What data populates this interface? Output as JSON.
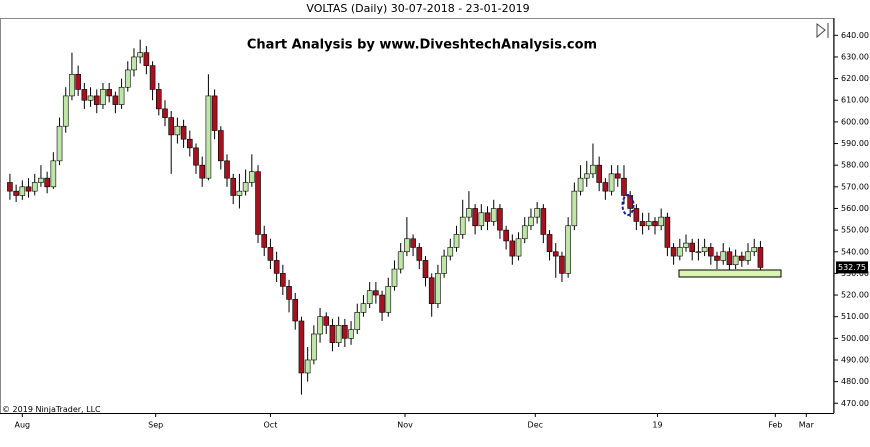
{
  "chart_data": {
    "type": "candlestick",
    "title": "VOLTAS (Daily)  30-07-2018 - 23-01-2019",
    "annotation": "Chart Analysis by www.DiveshtechAnalysis.com",
    "copyright": "© 2019 NinjaTrader, LLC",
    "up_color": "#bfe6a8",
    "down_color": "#a3121f",
    "ylim": [
      465.5,
      648
    ],
    "yticks": [
      {
        "value": 640,
        "label": "640.00"
      },
      {
        "value": 630,
        "label": "630.00"
      },
      {
        "value": 620,
        "label": "620.00"
      },
      {
        "value": 610,
        "label": "610.00"
      },
      {
        "value": 600,
        "label": "600.00"
      },
      {
        "value": 590,
        "label": "590.00"
      },
      {
        "value": 580,
        "label": "580.00"
      },
      {
        "value": 570,
        "label": "570.00"
      },
      {
        "value": 560,
        "label": "560.00"
      },
      {
        "value": 550,
        "label": "550.00"
      },
      {
        "value": 540,
        "label": "540.00"
      },
      {
        "value": 530,
        "label": "530.00"
      },
      {
        "value": 520,
        "label": "520.00"
      },
      {
        "value": 510,
        "label": "510.00"
      },
      {
        "value": 500,
        "label": "500.00"
      },
      {
        "value": 490,
        "label": "490.00"
      },
      {
        "value": 480,
        "label": "480.00"
      },
      {
        "value": 470,
        "label": "470.00"
      }
    ],
    "xlim": [
      -1.6,
      132.7
    ],
    "xticks": [
      {
        "value": 2,
        "label": "Aug"
      },
      {
        "value": 23.5,
        "label": "Sep"
      },
      {
        "value": 42,
        "label": "Oct"
      },
      {
        "value": 63.7,
        "label": "Nov"
      },
      {
        "value": 84.7,
        "label": "Dec"
      },
      {
        "value": 104.4,
        "label": "19"
      },
      {
        "value": 123.4,
        "label": "Feb"
      },
      {
        "value": 128.4,
        "label": "Mar"
      }
    ],
    "open": [
      572,
      568,
      566,
      570,
      568,
      572,
      574,
      570,
      582,
      598,
      612,
      622,
      615,
      610,
      612,
      608,
      615,
      612,
      608,
      616,
      624,
      630,
      632,
      626,
      615,
      606,
      602,
      594,
      598,
      592,
      588,
      580,
      574,
      612,
      596,
      582,
      574,
      566,
      568,
      572,
      577,
      548,
      542,
      536,
      530,
      524,
      518,
      508,
      484,
      490,
      502,
      510,
      506,
      498,
      506,
      500,
      504,
      512,
      516,
      522,
      520,
      512,
      524,
      532,
      540,
      546,
      542,
      536,
      528,
      516,
      530,
      538,
      542,
      548,
      556,
      560,
      552,
      558,
      554,
      560,
      550,
      545,
      538,
      546,
      552,
      556,
      560,
      548,
      540,
      538,
      530,
      552,
      568,
      574,
      576,
      580,
      572,
      568,
      576,
      574,
      566,
      560,
      554,
      552,
      554,
      552,
      556,
      542,
      538,
      542,
      544,
      540,
      540,
      542,
      538,
      536,
      540,
      534,
      538,
      536,
      540,
      542
    ],
    "high": [
      576,
      571,
      573,
      574,
      576,
      580,
      577,
      586,
      602,
      616,
      632,
      626,
      618,
      616,
      615,
      618,
      618,
      614,
      620,
      628,
      634,
      638,
      635,
      628,
      618,
      610,
      605,
      602,
      601,
      596,
      590,
      584,
      622,
      615,
      598,
      585,
      576,
      576,
      578,
      585,
      580,
      552,
      546,
      540,
      534,
      527,
      521,
      510,
      496,
      506,
      514,
      512,
      509,
      510,
      509,
      508,
      516,
      520,
      526,
      526,
      522,
      528,
      536,
      544,
      556,
      548,
      544,
      538,
      530,
      534,
      541,
      546,
      552,
      564,
      568,
      562,
      562,
      561,
      564,
      562,
      552,
      548,
      549,
      556,
      560,
      563,
      562,
      550,
      544,
      540,
      556,
      572,
      580,
      582,
      590,
      584,
      574,
      580,
      580,
      580,
      568,
      562,
      558,
      558,
      556,
      560,
      558,
      544,
      546,
      548,
      546,
      546,
      546,
      544,
      540,
      544,
      542,
      541,
      540,
      544,
      546,
      545
    ],
    "low": [
      564,
      563,
      564,
      565,
      566,
      570,
      567,
      569,
      580,
      595,
      610,
      612,
      606,
      607,
      604,
      606,
      609,
      604,
      606,
      614,
      621,
      627,
      622,
      610,
      603,
      598,
      576,
      590,
      588,
      584,
      576,
      570,
      573,
      592,
      578,
      570,
      562,
      560,
      566,
      570,
      544,
      538,
      532,
      526,
      520,
      512,
      504,
      474,
      480,
      488,
      498,
      502,
      494,
      496,
      496,
      497,
      502,
      510,
      514,
      516,
      508,
      510,
      522,
      530,
      538,
      538,
      532,
      524,
      510,
      514,
      528,
      536,
      540,
      546,
      554,
      548,
      550,
      550,
      552,
      546,
      541,
      534,
      536,
      544,
      550,
      553,
      544,
      536,
      528,
      526,
      528,
      550,
      566,
      570,
      574,
      568,
      564,
      566,
      570,
      562,
      556,
      550,
      548,
      550,
      548,
      550,
      538,
      534,
      536,
      540,
      536,
      536,
      538,
      534,
      532,
      534,
      530,
      532,
      533,
      534,
      538,
      531
    ],
    "close": [
      568,
      566,
      570,
      568,
      572,
      574,
      570,
      582,
      598,
      612,
      622,
      615,
      610,
      612,
      608,
      615,
      612,
      608,
      616,
      624,
      630,
      632,
      626,
      615,
      606,
      602,
      594,
      598,
      592,
      588,
      580,
      574,
      612,
      596,
      582,
      574,
      566,
      568,
      572,
      577,
      548,
      542,
      536,
      530,
      524,
      518,
      508,
      484,
      490,
      502,
      510,
      506,
      498,
      506,
      500,
      504,
      512,
      516,
      522,
      520,
      512,
      524,
      532,
      540,
      546,
      542,
      536,
      528,
      516,
      530,
      538,
      542,
      548,
      556,
      560,
      552,
      558,
      554,
      560,
      550,
      545,
      538,
      546,
      552,
      556,
      560,
      548,
      540,
      538,
      530,
      552,
      568,
      574,
      576,
      580,
      572,
      568,
      576,
      574,
      566,
      560,
      554,
      552,
      554,
      552,
      556,
      542,
      538,
      542,
      544,
      540,
      540,
      542,
      538,
      536,
      540,
      534,
      538,
      536,
      540,
      542,
      532.75
    ]
  }
}
